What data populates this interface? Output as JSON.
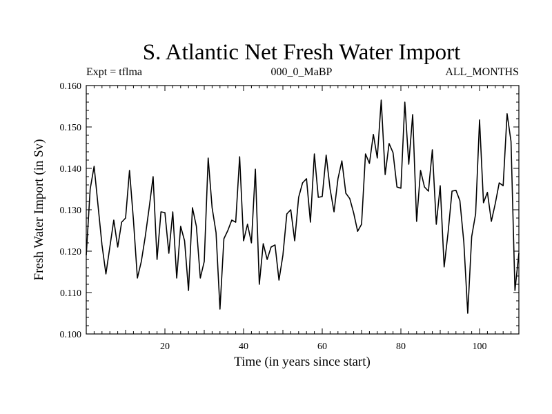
{
  "chart_data": {
    "type": "line",
    "title": "S. Atlantic Net Fresh Water Import",
    "subtitle_left": "Expt = tflma",
    "subtitle_center": "000_0_MaBP",
    "subtitle_right": "ALL_MONTHS",
    "xlabel": "Time (in years since start)",
    "ylabel": "Fresh Water Import (in Sv)",
    "xlim": [
      0,
      110
    ],
    "ylim": [
      0.1,
      0.16
    ],
    "xticks": [
      20,
      40,
      60,
      80,
      100
    ],
    "xtick_labels": [
      "20",
      "40",
      "60",
      "80",
      "100"
    ],
    "yticks": [
      0.1,
      0.11,
      0.12,
      0.13,
      0.14,
      0.15,
      0.16
    ],
    "ytick_labels": [
      "0.100",
      "0.110",
      "0.120",
      "0.130",
      "0.140",
      "0.150",
      "0.160"
    ],
    "grid": false,
    "legend": "none",
    "colors": {
      "line": "#000000",
      "axes": "#000000",
      "background": "#ffffff"
    },
    "series": [
      {
        "name": "Net Fresh Water Import",
        "x": [
          0,
          1,
          2,
          3,
          4,
          5,
          6,
          7,
          8,
          9,
          10,
          11,
          12,
          13,
          14,
          15,
          16,
          17,
          18,
          19,
          20,
          21,
          22,
          23,
          24,
          25,
          26,
          27,
          28,
          29,
          30,
          31,
          32,
          33,
          34,
          35,
          36,
          37,
          38,
          39,
          40,
          41,
          42,
          43,
          44,
          45,
          46,
          47,
          48,
          49,
          50,
          51,
          52,
          53,
          54,
          55,
          56,
          57,
          58,
          59,
          60,
          61,
          62,
          63,
          64,
          65,
          66,
          67,
          68,
          69,
          70,
          71,
          72,
          73,
          74,
          75,
          76,
          77,
          78,
          79,
          80,
          81,
          82,
          83,
          84,
          85,
          86,
          87,
          88,
          89,
          90,
          91,
          92,
          93,
          94,
          95,
          96,
          97,
          98,
          99,
          100,
          101,
          102,
          103,
          104,
          105,
          106,
          107,
          108,
          109,
          110
        ],
        "y": [
          0.119,
          0.135,
          0.1405,
          0.131,
          0.1215,
          0.1145,
          0.121,
          0.1275,
          0.121,
          0.127,
          0.128,
          0.1395,
          0.1275,
          0.1135,
          0.1175,
          0.1235,
          0.1305,
          0.138,
          0.118,
          0.1295,
          0.1293,
          0.1195,
          0.1295,
          0.1135,
          0.126,
          0.1225,
          0.1105,
          0.1305,
          0.126,
          0.1135,
          0.1175,
          0.1425,
          0.1305,
          0.1245,
          0.106,
          0.123,
          0.125,
          0.1275,
          0.127,
          0.1428,
          0.1225,
          0.1265,
          0.122,
          0.1398,
          0.112,
          0.1218,
          0.118,
          0.121,
          0.1215,
          0.113,
          0.119,
          0.129,
          0.13,
          0.1225,
          0.133,
          0.1365,
          0.1375,
          0.127,
          0.1435,
          0.133,
          0.1332,
          0.1432,
          0.135,
          0.1295,
          0.1375,
          0.1418,
          0.134,
          0.1327,
          0.1292,
          0.1248,
          0.1265,
          0.1435,
          0.1412,
          0.1482,
          0.1425,
          0.1565,
          0.1385,
          0.146,
          0.1438,
          0.1355,
          0.1352,
          0.156,
          0.141,
          0.153,
          0.1272,
          0.1395,
          0.1355,
          0.1345,
          0.1445,
          0.1265,
          0.1358,
          0.1162,
          0.1245,
          0.1345,
          0.1347,
          0.1322,
          0.1222,
          0.105,
          0.1235,
          0.129,
          0.1517,
          0.1317,
          0.1342,
          0.1272,
          0.1315,
          0.1365,
          0.1358,
          0.1532,
          0.1465,
          0.1105,
          0.1195
        ]
      }
    ]
  }
}
